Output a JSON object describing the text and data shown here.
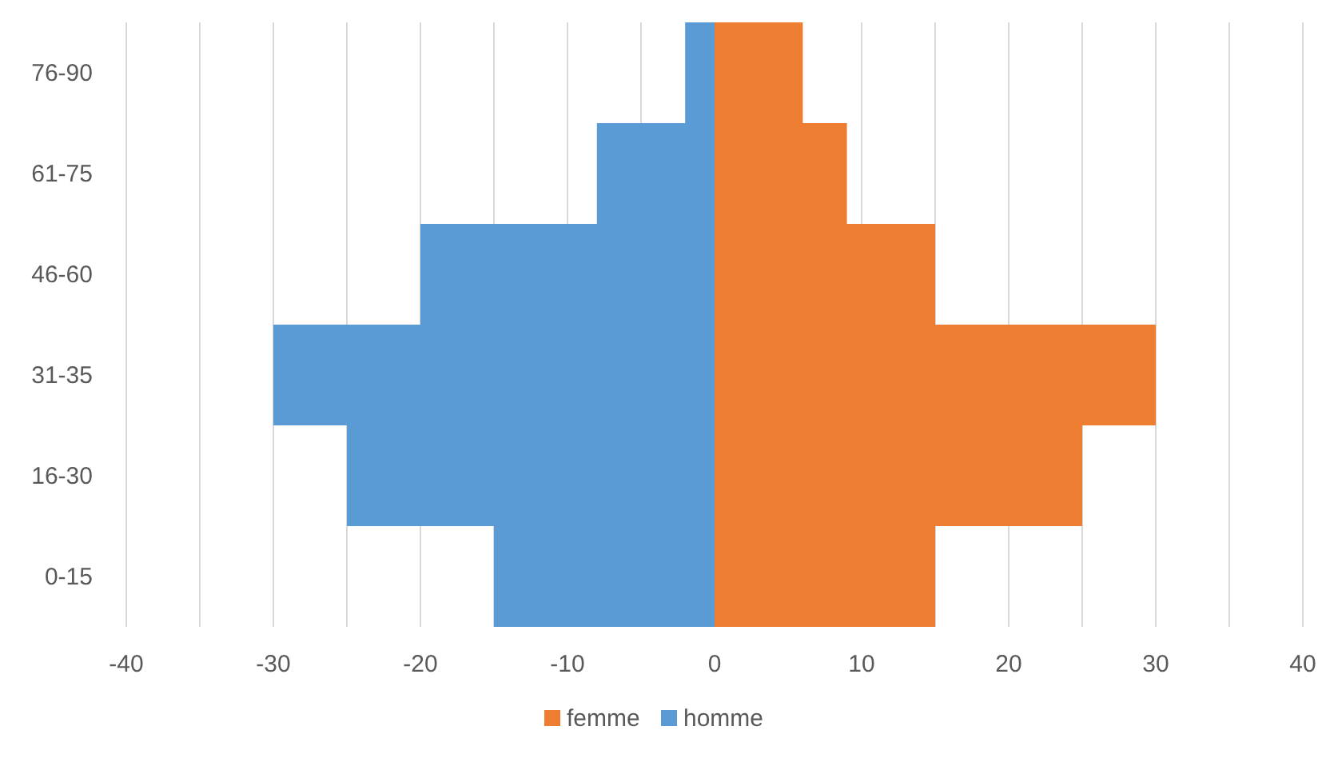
{
  "chart_data": {
    "type": "bar",
    "orientation": "horizontal",
    "stacked": true,
    "categories": [
      "76-90",
      "61-75",
      "46-60",
      "31-35",
      "16-30",
      "0-15"
    ],
    "series": [
      {
        "name": "femme",
        "color": "#ed7d31",
        "values": [
          6,
          9,
          15,
          30,
          25,
          15
        ]
      },
      {
        "name": "homme",
        "color": "#5b9bd5",
        "values": [
          -2,
          -8,
          -20,
          -30,
          -25,
          -15
        ]
      }
    ],
    "xlim": [
      -40,
      40
    ],
    "xticks": [
      -40,
      {
        "value": -35,
        "label": null
      },
      -30,
      {
        "value": -25,
        "label": null
      },
      -20,
      {
        "value": -15,
        "label": null
      },
      -10,
      {
        "value": -5,
        "label": null
      },
      0,
      10,
      {
        "value": 15,
        "label": null
      },
      20,
      {
        "value": 25,
        "label": null
      },
      30,
      {
        "value": 35,
        "label": null
      },
      40
    ],
    "grid": "x",
    "legend": "bottom"
  }
}
